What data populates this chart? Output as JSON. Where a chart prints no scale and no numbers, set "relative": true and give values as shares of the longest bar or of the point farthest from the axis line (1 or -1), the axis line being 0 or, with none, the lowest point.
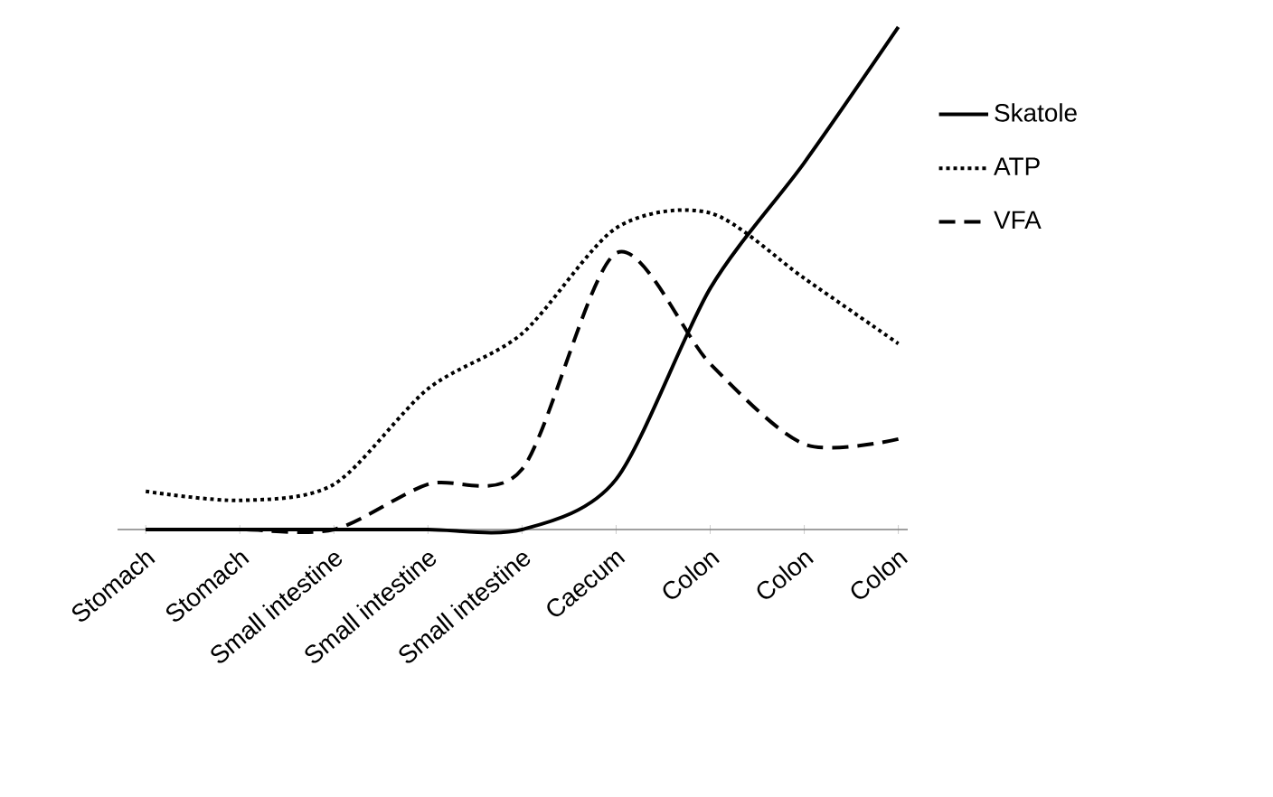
{
  "chart_data": {
    "type": "line",
    "relative": true,
    "categories": [
      "Stomach",
      "Stomach",
      "Small intestine",
      "Small intestine",
      "Small intestine",
      "Caecum",
      "Colon",
      "Colon",
      "Colon"
    ],
    "series": [
      {
        "name": "Skatole",
        "color": "#000000",
        "line_style": "solid",
        "values": [
          0,
          0,
          0,
          0,
          0,
          0.1,
          0.48,
          0.73,
          1
        ]
      },
      {
        "name": "ATP",
        "color": "#000000",
        "line_style": "dotted",
        "values": [
          0.076,
          0.058,
          0.09,
          0.28,
          0.39,
          0.6,
          0.63,
          0.5,
          0.37
        ]
      },
      {
        "name": "VFA",
        "color": "#000000",
        "line_style": "dashed",
        "values": [
          0,
          0,
          0,
          0.09,
          0.12,
          0.55,
          0.33,
          0.17,
          0.18
        ]
      }
    ],
    "legend": "right",
    "grid": false,
    "marker": "none"
  }
}
